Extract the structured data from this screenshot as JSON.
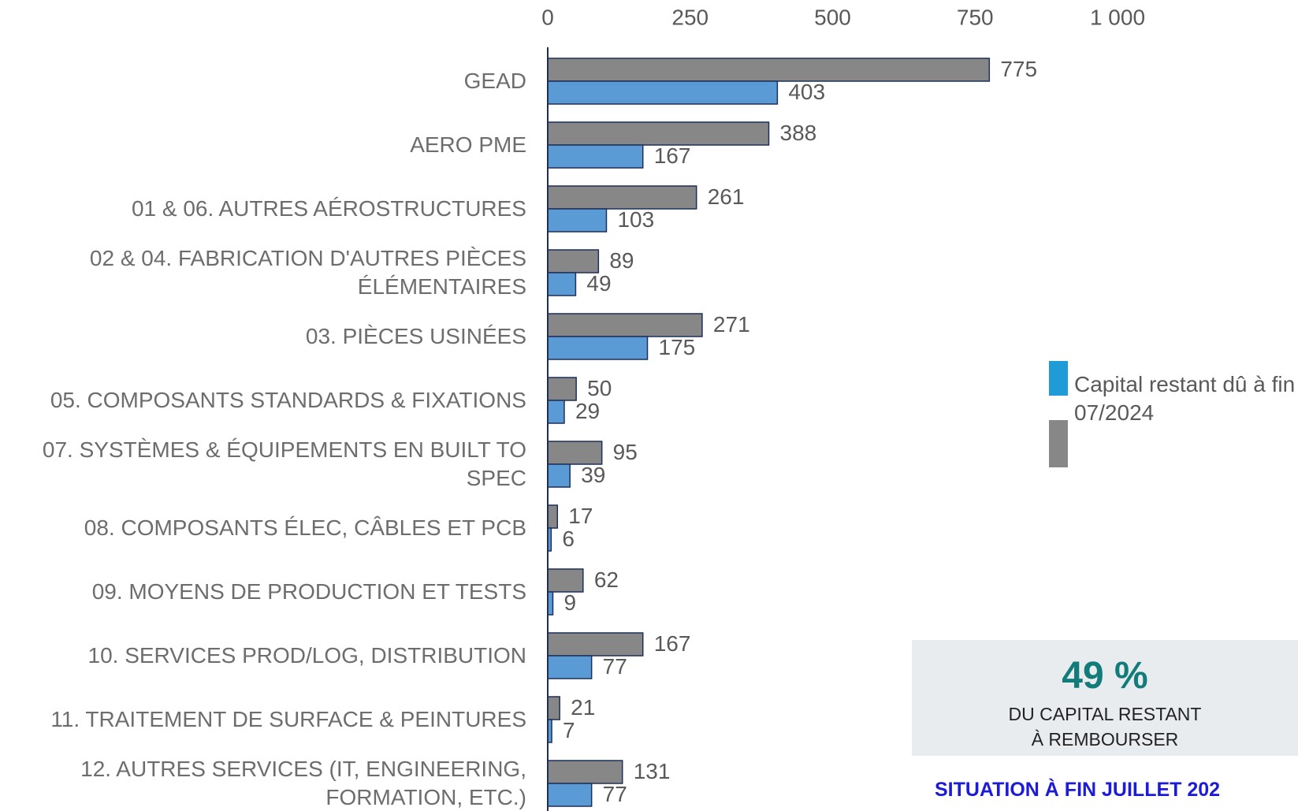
{
  "chart_data": {
    "type": "hbar",
    "categories": [
      "GEAD",
      "AERO PME",
      "01 & 06. AUTRES AÉROSTRUCTURES",
      "02 & 04. FABRICATION D'AUTRES PIÈCES ÉLÉMENTAIRES",
      "03. PIÈCES USINÉES",
      "05. COMPOSANTS STANDARDS & FIXATIONS",
      "07. SYSTÈMES & ÉQUIPEMENTS EN BUILT TO SPEC",
      "08. COMPOSANTS ÉLEC, CÂBLES ET PCB",
      "09. MOYENS DE PRODUCTION ET TESTS",
      "10. SERVICES PROD/LOG, DISTRIBUTION",
      "11. TRAITEMENT DE SURFACE & PEINTURES",
      "12. AUTRES SERVICES (IT, ENGINEERING, FORMATION, ETC.)"
    ],
    "series": [
      {
        "color": "#878787",
        "legend_color": "#878787",
        "values": [
          775,
          388,
          261,
          89,
          271,
          50,
          95,
          17,
          62,
          167,
          21,
          131
        ]
      },
      {
        "name": "Capital restant dû à fin 07/2024",
        "color": "#5b9bd5",
        "legend_color": "#1f9bd7",
        "values": [
          403,
          167,
          103,
          49,
          175,
          29,
          39,
          6,
          9,
          77,
          7,
          77
        ]
      }
    ],
    "xlim": [
      0,
      1000
    ],
    "xticks": [
      0,
      250,
      500,
      750,
      {
        "value": 1000,
        "label": "1 000"
      }
    ]
  },
  "kpi": {
    "value": "49 %",
    "text": "DU CAPITAL RESTANT À REMBOURSER"
  },
  "footer": "SITUATION À FIN JUILLET 202"
}
